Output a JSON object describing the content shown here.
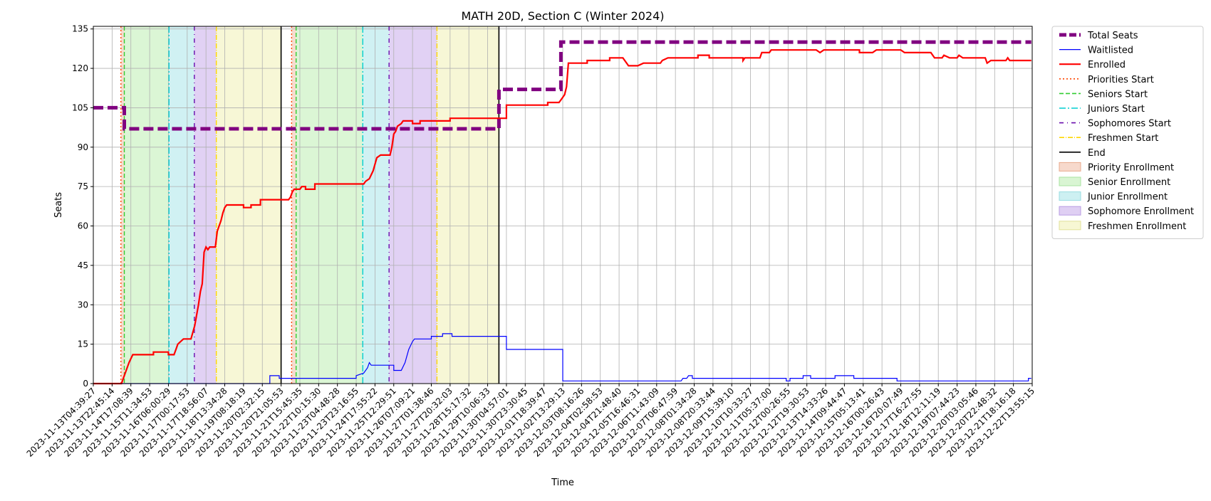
{
  "chart_data": {
    "type": "line",
    "title": "MATH 20D, Section C (Winter 2024)",
    "xlabel": "Time",
    "ylabel": "Seats",
    "ylim": [
      0,
      136
    ],
    "yticks": [
      0,
      15,
      30,
      45,
      60,
      75,
      90,
      105,
      120,
      135
    ],
    "grid": true,
    "legend_position": "outside-right",
    "x_ticks": [
      "2023-11-13T04:39:27",
      "2023-11-13T22:45:14",
      "2023-11-14T17:08:39",
      "2023-11-15T11:34:53",
      "2023-11-16T06:00:29",
      "2023-11-17T00:17:53",
      "2023-11-17T18:56:07",
      "2023-11-18T13:34:28",
      "2023-11-19T08:18:19",
      "2023-11-20T02:32:15",
      "2023-11-20T21:05:53",
      "2023-11-21T15:45:35",
      "2023-11-22T10:15:30",
      "2023-11-23T04:48:28",
      "2023-11-23T23:16:55",
      "2023-11-24T17:55:22",
      "2023-11-25T12:29:51",
      "2023-11-26T07:09:21",
      "2023-11-27T01:38:46",
      "2023-11-27T20:32:03",
      "2023-11-28T15:17:32",
      "2023-11-29T10:06:33",
      "2023-11-30T04:57:01",
      "2023-11-30T23:30:45",
      "2023-12-01T18:39:47",
      "2023-12-02T13:29:13",
      "2023-12-03T08:16:26",
      "2023-12-04T02:58:53",
      "2023-12-04T21:48:40",
      "2023-12-05T16:46:31",
      "2023-12-06T11:43:09",
      "2023-12-07T06:47:59",
      "2023-12-08T01:34:28",
      "2023-12-08T20:33:44",
      "2023-12-09T15:39:10",
      "2023-12-10T10:33:27",
      "2023-12-11T05:37:00",
      "2023-12-12T00:26:55",
      "2023-12-12T19:30:53",
      "2023-12-13T14:33:26",
      "2023-12-14T09:44:47",
      "2023-12-15T05:13:41",
      "2023-12-16T00:26:43",
      "2023-12-16T20:07:49",
      "2023-12-17T16:27:55",
      "2023-12-18T12:11:19",
      "2023-12-19T07:44:23",
      "2023-12-20T03:05:46",
      "2023-12-20T22:48:32",
      "2023-12-21T18:16:18",
      "2023-12-22T13:55:15"
    ],
    "x_range": [
      0,
      50
    ],
    "colors": {
      "total": "#800080",
      "waitlisted": "#0000ff",
      "enrolled": "#ff0000",
      "priorities": "#ff4500",
      "seniors": "#32cd32",
      "juniors": "#00ced1",
      "sophomores": "#6a0dad",
      "freshmen": "#ffd700",
      "end": "#000000",
      "priority_fill": "#f7d9cc",
      "senior_fill": "#d9f5d3",
      "junior_fill": "#cdf0f2",
      "sophomore_fill": "#dfcff3",
      "freshmen_fill": "#f7f7d4"
    },
    "series": [
      {
        "name": "Total Seats",
        "points": [
          [
            0,
            105
          ],
          [
            1.65,
            105
          ],
          [
            1.65,
            97
          ],
          [
            21.6,
            97
          ],
          [
            21.6,
            112
          ],
          [
            24.9,
            112
          ],
          [
            24.9,
            130
          ],
          [
            49.95,
            130
          ]
        ]
      },
      {
        "name": "Waitlisted",
        "points": [
          [
            0,
            0
          ],
          [
            9.4,
            0
          ],
          [
            9.4,
            3
          ],
          [
            9.9,
            3
          ],
          [
            9.9,
            2
          ],
          [
            14.0,
            2
          ],
          [
            14.0,
            3
          ],
          [
            14.4,
            4
          ],
          [
            14.6,
            6
          ],
          [
            14.7,
            8
          ],
          [
            14.8,
            7
          ],
          [
            16.0,
            7
          ],
          [
            16.0,
            5
          ],
          [
            16.4,
            5
          ],
          [
            16.6,
            8
          ],
          [
            16.8,
            13
          ],
          [
            17.0,
            16
          ],
          [
            17.1,
            17
          ],
          [
            18.0,
            17
          ],
          [
            18.0,
            18
          ],
          [
            18.6,
            18
          ],
          [
            18.6,
            19
          ],
          [
            19.1,
            19
          ],
          [
            19.1,
            18
          ],
          [
            22.0,
            18
          ],
          [
            22.0,
            13
          ],
          [
            25.0,
            13
          ],
          [
            25.0,
            1
          ],
          [
            31.3,
            1
          ],
          [
            31.4,
            2
          ],
          [
            31.6,
            2
          ],
          [
            31.7,
            3
          ],
          [
            31.9,
            3
          ],
          [
            31.9,
            2
          ],
          [
            36.9,
            2
          ],
          [
            36.9,
            1
          ],
          [
            37.1,
            1
          ],
          [
            37.1,
            2
          ],
          [
            37.8,
            2
          ],
          [
            37.8,
            3
          ],
          [
            38.2,
            3
          ],
          [
            38.2,
            2
          ],
          [
            39.5,
            2
          ],
          [
            39.5,
            3
          ],
          [
            40.5,
            3
          ],
          [
            40.5,
            2
          ],
          [
            42.8,
            2
          ],
          [
            42.8,
            1
          ],
          [
            49.8,
            1
          ],
          [
            49.8,
            2
          ],
          [
            49.95,
            2
          ]
        ]
      },
      {
        "name": "Enrolled",
        "points": [
          [
            0,
            0
          ],
          [
            1.5,
            0
          ],
          [
            1.7,
            4
          ],
          [
            1.9,
            8
          ],
          [
            2.1,
            11
          ],
          [
            3.2,
            11
          ],
          [
            3.2,
            12
          ],
          [
            4.0,
            12
          ],
          [
            4.0,
            11
          ],
          [
            4.3,
            11
          ],
          [
            4.4,
            13
          ],
          [
            4.5,
            15
          ],
          [
            4.8,
            17
          ],
          [
            5.2,
            17
          ],
          [
            5.4,
            22
          ],
          [
            5.6,
            30
          ],
          [
            5.7,
            35
          ],
          [
            5.8,
            38
          ],
          [
            5.9,
            50
          ],
          [
            6.0,
            52
          ],
          [
            6.1,
            51
          ],
          [
            6.2,
            52
          ],
          [
            6.5,
            52
          ],
          [
            6.6,
            58
          ],
          [
            6.8,
            62
          ],
          [
            6.9,
            65
          ],
          [
            7.0,
            67
          ],
          [
            7.1,
            68
          ],
          [
            8.0,
            68
          ],
          [
            8.0,
            67
          ],
          [
            8.4,
            67
          ],
          [
            8.4,
            68
          ],
          [
            8.9,
            68
          ],
          [
            8.9,
            70
          ],
          [
            10.4,
            70
          ],
          [
            10.5,
            71
          ],
          [
            10.6,
            73
          ],
          [
            10.7,
            74
          ],
          [
            11.0,
            74
          ],
          [
            11.1,
            75
          ],
          [
            11.3,
            75
          ],
          [
            11.3,
            74
          ],
          [
            11.8,
            74
          ],
          [
            11.8,
            76
          ],
          [
            14.4,
            76
          ],
          [
            14.5,
            77
          ],
          [
            14.7,
            78
          ],
          [
            14.9,
            81
          ],
          [
            15.1,
            86
          ],
          [
            15.3,
            87
          ],
          [
            15.8,
            87
          ],
          [
            15.9,
            90
          ],
          [
            16.0,
            95
          ],
          [
            16.1,
            96
          ],
          [
            16.2,
            98
          ],
          [
            16.4,
            99
          ],
          [
            16.5,
            100
          ],
          [
            17.0,
            100
          ],
          [
            17.0,
            99
          ],
          [
            17.4,
            99
          ],
          [
            17.4,
            100
          ],
          [
            19.0,
            100
          ],
          [
            19.0,
            101
          ],
          [
            22.0,
            101
          ],
          [
            22.0,
            106
          ],
          [
            24.2,
            106
          ],
          [
            24.2,
            107
          ],
          [
            24.8,
            107
          ],
          [
            24.9,
            108
          ],
          [
            25.0,
            109
          ],
          [
            25.1,
            110
          ],
          [
            25.2,
            113
          ],
          [
            25.3,
            122
          ],
          [
            26.3,
            122
          ],
          [
            26.3,
            123
          ],
          [
            27.5,
            123
          ],
          [
            27.5,
            124
          ],
          [
            28.2,
            124
          ],
          [
            28.5,
            121
          ],
          [
            29.0,
            121
          ],
          [
            29.3,
            122
          ],
          [
            30.2,
            122
          ],
          [
            30.3,
            123
          ],
          [
            30.6,
            124
          ],
          [
            32.2,
            124
          ],
          [
            32.2,
            125
          ],
          [
            32.8,
            125
          ],
          [
            32.8,
            124
          ],
          [
            34.6,
            124
          ],
          [
            34.6,
            123
          ],
          [
            34.7,
            124
          ],
          [
            35.5,
            124
          ],
          [
            35.6,
            126
          ],
          [
            36.0,
            126
          ],
          [
            36.1,
            127
          ],
          [
            38.5,
            127
          ],
          [
            38.7,
            126
          ],
          [
            38.9,
            127
          ],
          [
            40.8,
            127
          ],
          [
            40.8,
            126
          ],
          [
            41.5,
            126
          ],
          [
            41.7,
            127
          ],
          [
            43.0,
            127
          ],
          [
            43.2,
            126
          ],
          [
            44.6,
            126
          ],
          [
            44.8,
            124
          ],
          [
            45.2,
            124
          ],
          [
            45.3,
            125
          ],
          [
            45.6,
            124
          ],
          [
            46.0,
            124
          ],
          [
            46.1,
            125
          ],
          [
            46.3,
            124
          ],
          [
            47.5,
            124
          ],
          [
            47.6,
            122
          ],
          [
            47.8,
            123
          ],
          [
            48.6,
            123
          ],
          [
            48.7,
            124
          ],
          [
            48.8,
            123
          ],
          [
            49.95,
            123
          ]
        ]
      }
    ],
    "phases": [
      {
        "name": "Priority Enrollment",
        "start": 1.47,
        "end": 1.65
      },
      {
        "name": "Senior Enrollment",
        "start": 1.65,
        "end": 4.03
      },
      {
        "name": "Junior Enrollment",
        "start": 4.03,
        "end": 5.38
      },
      {
        "name": "Sophomore Enrollment",
        "start": 5.38,
        "end": 6.55
      },
      {
        "name": "Freshmen Enrollment",
        "start": 6.55,
        "end": 10.0
      },
      {
        "name": "Priority Enrollment",
        "start": 10.56,
        "end": 10.8
      },
      {
        "name": "Senior Enrollment",
        "start": 10.8,
        "end": 14.35
      },
      {
        "name": "Junior Enrollment",
        "start": 14.35,
        "end": 15.75
      },
      {
        "name": "Sophomore Enrollment",
        "start": 15.75,
        "end": 18.3
      },
      {
        "name": "Freshmen Enrollment",
        "start": 18.3,
        "end": 21.6
      }
    ],
    "markers": [
      {
        "name": "Priorities Start",
        "x": [
          1.47,
          10.56
        ]
      },
      {
        "name": "Seniors Start",
        "x": [
          1.65,
          10.8
        ]
      },
      {
        "name": "Juniors Start",
        "x": [
          4.03,
          14.35
        ]
      },
      {
        "name": "Sophomores Start",
        "x": [
          5.38,
          15.75
        ]
      },
      {
        "name": "Freshmen Start",
        "x": [
          6.55,
          18.3
        ]
      },
      {
        "name": "End",
        "x": [
          10.0,
          21.6
        ]
      }
    ],
    "legend": [
      "Total Seats",
      "Waitlisted",
      "Enrolled",
      "Priorities Start",
      "Seniors Start",
      "Juniors Start",
      "Sophomores Start",
      "Freshmen Start",
      "End",
      "Priority Enrollment",
      "Senior Enrollment",
      "Junior Enrollment",
      "Sophomore Enrollment",
      "Freshmen Enrollment"
    ]
  }
}
